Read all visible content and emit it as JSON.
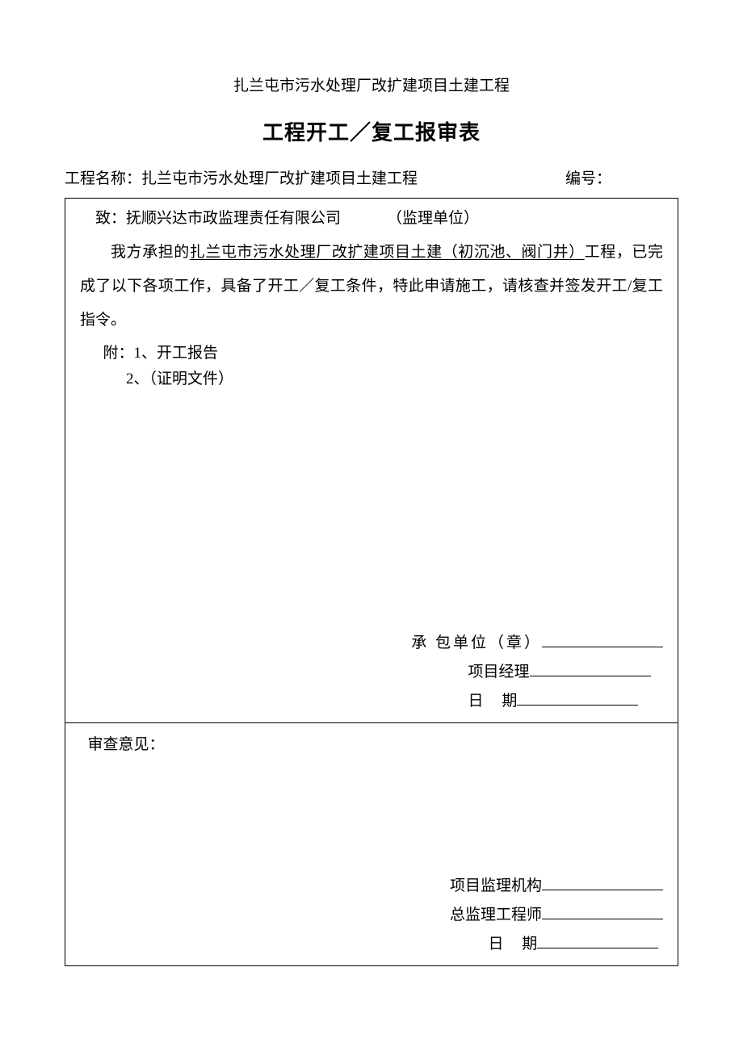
{
  "header": {
    "project_header": "扎兰屯市污水处理厂改扩建项目土建工程",
    "form_title": "工程开工／复工报审表"
  },
  "meta": {
    "project_name_label": "工程名称：",
    "project_name_value": "扎兰屯市污水处理厂改扩建项目土建工程",
    "number_label": "编号：",
    "number_value": ""
  },
  "upper_section": {
    "to_prefix": "致：",
    "to_company": "抚顺兴达市政监理责任有限公司",
    "to_role": "（监理单位）",
    "body_prefix": "我方承担的",
    "body_underlined": "扎兰屯市污水处理厂改扩建项目土建（初沉池、阀门井）",
    "body_suffix": "工程，已完成了以下各项工作，具备了开工／复工条件，特此申请施工，请核查并签发开工/复工指令。",
    "attach_label": "附：1、开工报告",
    "attach_item2": "2、（证明文件）",
    "sign": {
      "contractor_label": "承 包单位（章）",
      "pm_label": "项目经理",
      "date_label": "日",
      "date_label2": "期"
    }
  },
  "lower_section": {
    "review_label": "审查意见：",
    "sign": {
      "org_label": "项目监理机构",
      "chief_label": "总监理工程师",
      "date_label": "日",
      "date_label2": "期"
    }
  },
  "style": {
    "text_color": "#000000",
    "background_color": "#ffffff",
    "border_color": "#000000",
    "body_fontsize": 19,
    "title_fontsize": 26,
    "underline_width": 150
  }
}
